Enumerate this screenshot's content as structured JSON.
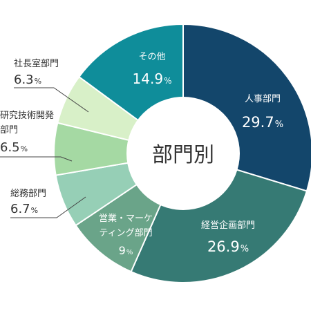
{
  "chart_data": {
    "type": "donut",
    "title": "",
    "center_label": "部門別",
    "slices": [
      {
        "name": "人事部門",
        "display": "29.7",
        "unit": "%",
        "value": 29.7,
        "color": "#13466b"
      },
      {
        "name": "経営企画部門",
        "display": "26.9",
        "unit": "%",
        "value": 26.9,
        "color": "#367a74"
      },
      {
        "name": "営業・マーケティング部門",
        "display": "9",
        "unit": "%",
        "value": 9.0,
        "color": "#6aa489"
      },
      {
        "name": "総務部門",
        "display": "6.7",
        "unit": "%",
        "value": 6.7,
        "color": "#96cfb6"
      },
      {
        "name": "研究技術開発部門",
        "display": "6.5",
        "unit": "%",
        "value": 6.5,
        "color": "#a5d9a3"
      },
      {
        "name": "社長室部門",
        "display": "6.3",
        "unit": "%",
        "value": 6.3,
        "color": "#d8f0c8"
      },
      {
        "name": "その他",
        "display": "14.9",
        "unit": "%",
        "value": 14.9,
        "color": "#0f8d9a"
      }
    ]
  }
}
